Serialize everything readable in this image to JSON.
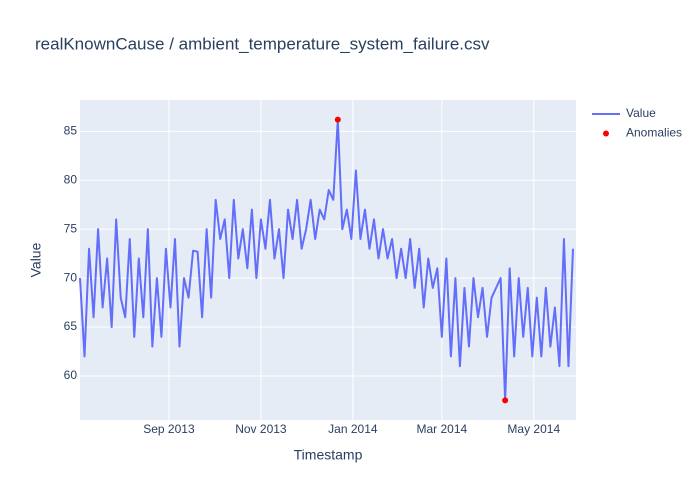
{
  "chart_data": {
    "type": "line",
    "title": "realKnownCause / ambient_temperature_system_failure.csv",
    "x_label": "Timestamp",
    "y_label": "Value",
    "xlim": [
      "2013-07-04",
      "2014-05-29"
    ],
    "xticks": [
      {
        "value": "2013-09-01",
        "label": "Sep 2013"
      },
      {
        "value": "2013-11-01",
        "label": "Nov 2013"
      },
      {
        "value": "2014-01-01",
        "label": "Jan 2014"
      },
      {
        "value": "2014-03-01",
        "label": "Mar 2014"
      },
      {
        "value": "2014-05-01",
        "label": "May 2014"
      }
    ],
    "ylim": [
      55.5,
      88.2
    ],
    "yticks": [
      60,
      65,
      70,
      75,
      80,
      85
    ],
    "grid": true,
    "legend": "right",
    "series": [
      {
        "name": "Value",
        "color": "#636efa",
        "mode": "line",
        "x": [
          "2013-07-04",
          "2013-07-07",
          "2013-07-10",
          "2013-07-13",
          "2013-07-16",
          "2013-07-19",
          "2013-07-22",
          "2013-07-25",
          "2013-07-28",
          "2013-07-31",
          "2013-08-03",
          "2013-08-06",
          "2013-08-09",
          "2013-08-12",
          "2013-08-15",
          "2013-08-18",
          "2013-08-21",
          "2013-08-24",
          "2013-08-27",
          "2013-08-30",
          "2013-09-02",
          "2013-09-05",
          "2013-09-08",
          "2013-09-11",
          "2013-09-14",
          "2013-09-17",
          "2013-09-20",
          "2013-09-23",
          "2013-09-26",
          "2013-09-29",
          "2013-10-02",
          "2013-10-05",
          "2013-10-08",
          "2013-10-11",
          "2013-10-14",
          "2013-10-17",
          "2013-10-20",
          "2013-10-23",
          "2013-10-26",
          "2013-10-29",
          "2013-11-01",
          "2013-11-04",
          "2013-11-07",
          "2013-11-10",
          "2013-11-13",
          "2013-11-16",
          "2013-11-19",
          "2013-11-22",
          "2013-11-25",
          "2013-11-28",
          "2013-12-01",
          "2013-12-04",
          "2013-12-07",
          "2013-12-10",
          "2013-12-13",
          "2013-12-16",
          "2013-12-19",
          "2013-12-22",
          "2013-12-25",
          "2013-12-28",
          "2013-12-31",
          "2014-01-03",
          "2014-01-06",
          "2014-01-09",
          "2014-01-12",
          "2014-01-15",
          "2014-01-18",
          "2014-01-21",
          "2014-01-24",
          "2014-01-27",
          "2014-01-30",
          "2014-02-02",
          "2014-02-05",
          "2014-02-08",
          "2014-02-11",
          "2014-02-14",
          "2014-02-17",
          "2014-02-20",
          "2014-02-23",
          "2014-02-26",
          "2014-03-01",
          "2014-03-04",
          "2014-03-07",
          "2014-03-10",
          "2014-03-13",
          "2014-03-16",
          "2014-03-19",
          "2014-03-22",
          "2014-03-25",
          "2014-03-28",
          "2014-03-31",
          "2014-04-03",
          "2014-04-06",
          "2014-04-09",
          "2014-04-12",
          "2014-04-15",
          "2014-04-18",
          "2014-04-21",
          "2014-04-24",
          "2014-04-27",
          "2014-04-30",
          "2014-05-03",
          "2014-05-06",
          "2014-05-09",
          "2014-05-12",
          "2014-05-15",
          "2014-05-18",
          "2014-05-21",
          "2014-05-24",
          "2014-05-27"
        ],
        "values": [
          70,
          62,
          73,
          66,
          75,
          67,
          72,
          65,
          76,
          68,
          66,
          74,
          64,
          72,
          66,
          75,
          63,
          70,
          64,
          73,
          67,
          74,
          63,
          70,
          68,
          72.8,
          72.7,
          66,
          75,
          68,
          78,
          74,
          76,
          70,
          78,
          72,
          75,
          71,
          77,
          70,
          76,
          73,
          78,
          72,
          75,
          70,
          77,
          74,
          78,
          73,
          75,
          78,
          74,
          77,
          76,
          79,
          78,
          86.2,
          75,
          77,
          74,
          81,
          74,
          77,
          73,
          76,
          72,
          75,
          72,
          74,
          70,
          73,
          70,
          74,
          69,
          73,
          67,
          72,
          69,
          71,
          64,
          72,
          62,
          70,
          61,
          69,
          63,
          70,
          66,
          69,
          64,
          68,
          69,
          70,
          57.5,
          71,
          62,
          70,
          64,
          69,
          62,
          68,
          62,
          69,
          63,
          67,
          61,
          74,
          61,
          73
        ]
      },
      {
        "name": "Anomalies",
        "color": "#ff0000",
        "mode": "markers",
        "x": [
          "2013-12-22",
          "2014-04-12"
        ],
        "values": [
          86.2,
          57.5
        ]
      }
    ]
  }
}
